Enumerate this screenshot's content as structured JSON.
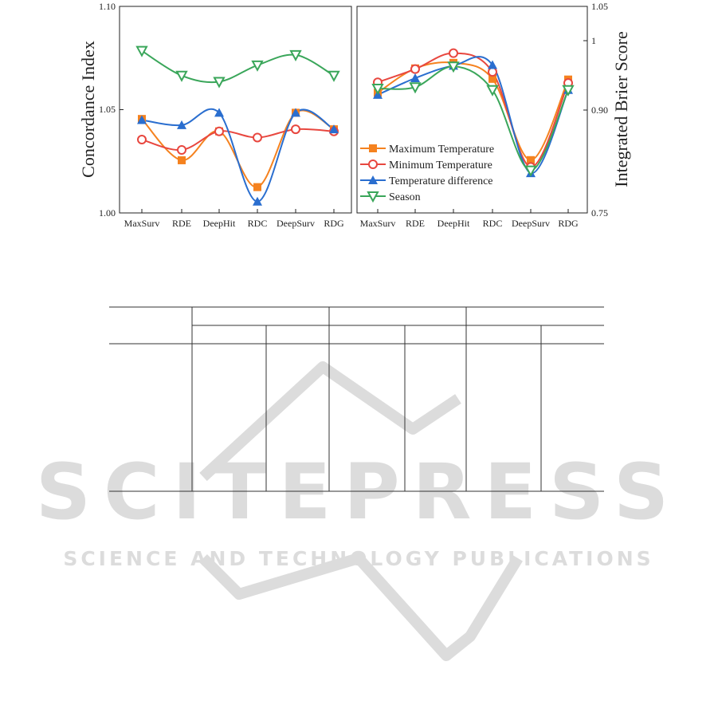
{
  "chart_data": [
    {
      "type": "line",
      "panel": "left",
      "ylabel": "Concordance Index",
      "ylim": [
        1.0,
        1.1
      ],
      "yticks": [
        "1.00",
        "1.05",
        "1.10"
      ],
      "categories": [
        "MaxSurv",
        "RDE",
        "DeepHit",
        "RDC",
        "DeepSurv",
        "RDG"
      ],
      "series": [
        {
          "name": "Maximum Temperature",
          "color": "#f5821f",
          "marker": "square",
          "values": [
            1.0455,
            1.0255,
            1.0395,
            1.0125,
            1.0485,
            1.0405
          ]
        },
        {
          "name": "Minimum Temperature",
          "color": "#e8473f",
          "marker": "circle",
          "values": [
            1.0355,
            1.0305,
            1.0395,
            1.0365,
            1.0405,
            1.0395
          ]
        },
        {
          "name": "Temperature difference",
          "color": "#2a6ecf",
          "marker": "triangle-up",
          "values": [
            1.045,
            1.0425,
            1.0485,
            1.0055,
            1.0485,
            1.0405
          ]
        },
        {
          "name": "Season",
          "color": "#3aa65a",
          "marker": "triangle-down",
          "values": [
            1.0785,
            1.0665,
            1.0635,
            1.0715,
            1.0765,
            1.0665
          ]
        }
      ],
      "grid": false,
      "legend": "none"
    },
    {
      "type": "line",
      "panel": "right",
      "ylabel": "Integrated Brier Score",
      "ylim": [
        0.75,
        1.05
      ],
      "yticks": [
        "0.75",
        "0.90",
        "1",
        "1.05"
      ],
      "categories": [
        "MaxSurv",
        "RDE",
        "DeepHit",
        "RDC",
        "DeepSurv",
        "RDG"
      ],
      "series": [
        {
          "name": "Maximum Temperature",
          "color": "#f5821f",
          "marker": "square",
          "values": [
            0.925,
            0.96,
            0.968,
            0.945,
            0.827,
            0.944
          ]
        },
        {
          "name": "Minimum Temperature",
          "color": "#e8473f",
          "marker": "circle",
          "values": [
            0.94,
            0.959,
            0.982,
            0.955,
            0.817,
            0.939
          ]
        },
        {
          "name": "Temperature difference",
          "color": "#2a6ecf",
          "marker": "triangle-up",
          "values": [
            0.922,
            0.946,
            0.964,
            0.965,
            0.808,
            0.929
          ]
        },
        {
          "name": "Season",
          "color": "#3aa65a",
          "marker": "triangle-down",
          "values": [
            0.931,
            0.933,
            0.963,
            0.929,
            0.812,
            0.929
          ]
        }
      ],
      "grid": false,
      "legend": "center-bottom"
    }
  ],
  "colors": {
    "axis": "#222222",
    "watermark": "#d9d9d9",
    "table_rule": "#333333"
  },
  "watermark": {
    "logo": "SCITEPRESS",
    "tagline": "SCIENCE AND TECHNOLOGY PUBLICATIONS"
  }
}
